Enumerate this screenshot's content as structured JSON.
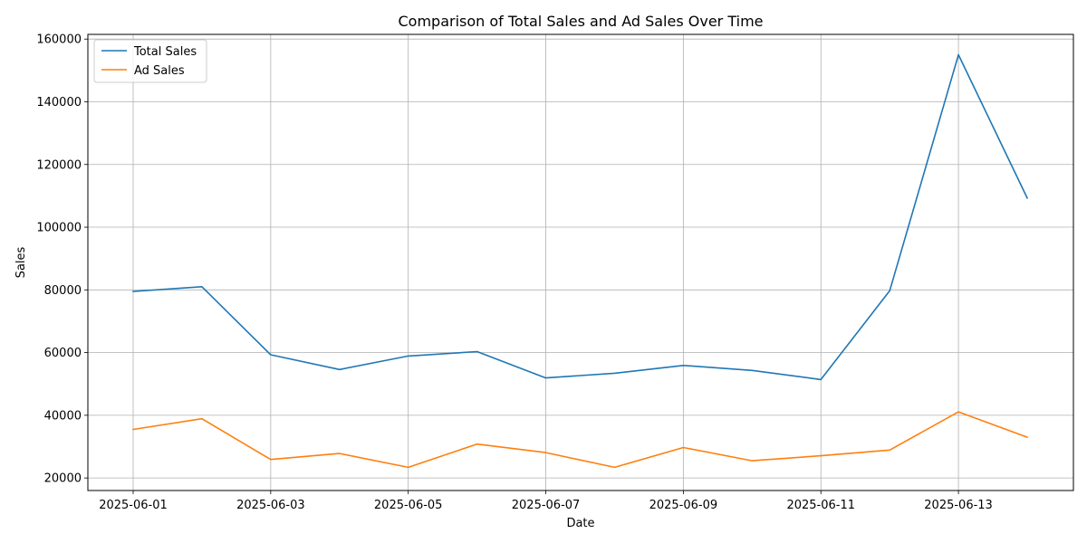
{
  "chart_data": {
    "type": "line",
    "title": "Comparison of Total Sales and Ad Sales Over Time",
    "xlabel": "Date",
    "ylabel": "Sales",
    "grid": true,
    "legend_position": "upper-left",
    "ylim": [
      16000,
      161500
    ],
    "x_tick_labels": [
      "2025-06-01",
      "2025-06-03",
      "2025-06-05",
      "2025-06-07",
      "2025-06-09",
      "2025-06-11",
      "2025-06-13"
    ],
    "y_tick_labels": [
      "20000",
      "40000",
      "60000",
      "80000",
      "100000",
      "120000",
      "140000",
      "160000"
    ],
    "x": [
      "2025-06-01",
      "2025-06-02",
      "2025-06-03",
      "2025-06-04",
      "2025-06-05",
      "2025-06-06",
      "2025-06-07",
      "2025-06-08",
      "2025-06-09",
      "2025-06-10",
      "2025-06-11",
      "2025-06-12",
      "2025-06-13",
      "2025-06-14"
    ],
    "series": [
      {
        "name": "Total Sales",
        "color": "#1f77b4",
        "values": [
          79500,
          81000,
          59300,
          54600,
          58900,
          60300,
          51900,
          53400,
          55900,
          54300,
          51400,
          79700,
          155000,
          109300
        ]
      },
      {
        "name": "Ad Sales",
        "color": "#ff7f0e",
        "values": [
          35500,
          38900,
          25900,
          27800,
          23400,
          30800,
          28100,
          23400,
          29700,
          25500,
          27100,
          28900,
          41100,
          33000
        ]
      }
    ]
  }
}
